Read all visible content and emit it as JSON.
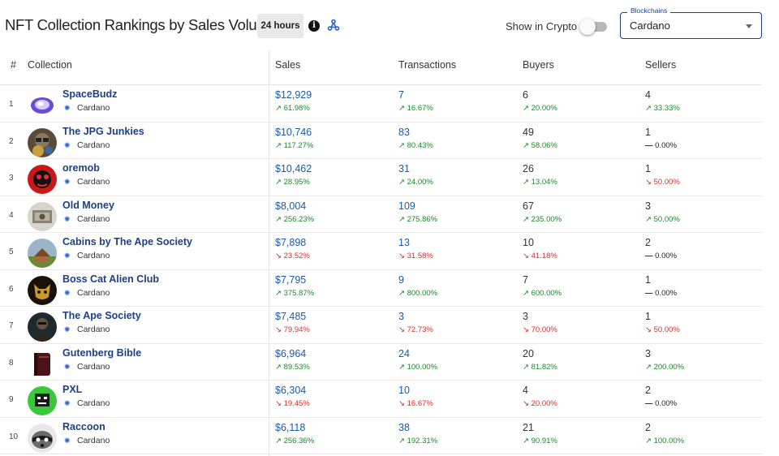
{
  "header": {
    "title": "NFT Collection Rankings by Sales Volume",
    "period": "24 hours",
    "info_icon": "info-icon",
    "webhook_icon": "webhook-icon",
    "show_crypto_label": "Show in Crypto",
    "show_crypto_enabled": false,
    "blockchain_label": "Blockchains",
    "blockchain_value": "Cardano"
  },
  "columns": {
    "rank": "#",
    "collection": "Collection",
    "sales": "Sales",
    "transactions": "Transactions",
    "buyers": "Buyers",
    "sellers": "Sellers"
  },
  "colors": {
    "link": "#1c5aa6",
    "positive": "#1a8a2a",
    "negative": "#d32f2f",
    "accent": "#1c3f87"
  },
  "rows": [
    {
      "rank": "1",
      "name": "SpaceBudz",
      "chain": "Cardano",
      "sales": "$12,929",
      "sales_change": "61.98%",
      "sales_dir": "up",
      "tx": "7",
      "tx_change": "16.67%",
      "tx_dir": "up",
      "buyers": "6",
      "buyers_change": "20.00%",
      "buyers_dir": "up",
      "sellers": "4",
      "sellers_change": "33.33%",
      "sellers_dir": "up"
    },
    {
      "rank": "2",
      "name": "The JPG Junkies",
      "chain": "Cardano",
      "sales": "$10,746",
      "sales_change": "117.27%",
      "sales_dir": "up",
      "tx": "83",
      "tx_change": "80.43%",
      "tx_dir": "up",
      "buyers": "49",
      "buyers_change": "58.06%",
      "buyers_dir": "up",
      "sellers": "1",
      "sellers_change": "0.00%",
      "sellers_dir": "flat"
    },
    {
      "rank": "3",
      "name": "oremob",
      "chain": "Cardano",
      "sales": "$10,462",
      "sales_change": "28.95%",
      "sales_dir": "up",
      "tx": "31",
      "tx_change": "24.00%",
      "tx_dir": "up",
      "buyers": "26",
      "buyers_change": "13.04%",
      "buyers_dir": "up",
      "sellers": "1",
      "sellers_change": "50.00%",
      "sellers_dir": "down"
    },
    {
      "rank": "4",
      "name": "Old Money",
      "chain": "Cardano",
      "sales": "$8,004",
      "sales_change": "256.23%",
      "sales_dir": "up",
      "tx": "109",
      "tx_change": "275.86%",
      "tx_dir": "up",
      "buyers": "67",
      "buyers_change": "235.00%",
      "buyers_dir": "up",
      "sellers": "3",
      "sellers_change": "50.00%",
      "sellers_dir": "up"
    },
    {
      "rank": "5",
      "name": "Cabins by The Ape Society",
      "chain": "Cardano",
      "sales": "$7,898",
      "sales_change": "23.52%",
      "sales_dir": "down",
      "tx": "13",
      "tx_change": "31.58%",
      "tx_dir": "down",
      "buyers": "10",
      "buyers_change": "41.18%",
      "buyers_dir": "down",
      "sellers": "2",
      "sellers_change": "0.00%",
      "sellers_dir": "flat"
    },
    {
      "rank": "6",
      "name": "Boss Cat Alien Club",
      "chain": "Cardano",
      "sales": "$7,795",
      "sales_change": "375.87%",
      "sales_dir": "up",
      "tx": "9",
      "tx_change": "800.00%",
      "tx_dir": "up",
      "buyers": "7",
      "buyers_change": "600.00%",
      "buyers_dir": "up",
      "sellers": "1",
      "sellers_change": "0.00%",
      "sellers_dir": "flat"
    },
    {
      "rank": "7",
      "name": "The Ape Society",
      "chain": "Cardano",
      "sales": "$7,485",
      "sales_change": "79.94%",
      "sales_dir": "down",
      "tx": "3",
      "tx_change": "72.73%",
      "tx_dir": "down",
      "buyers": "3",
      "buyers_change": "70.00%",
      "buyers_dir": "down",
      "sellers": "1",
      "sellers_change": "50.00%",
      "sellers_dir": "down"
    },
    {
      "rank": "8",
      "name": "Gutenberg Bible",
      "chain": "Cardano",
      "sales": "$6,964",
      "sales_change": "89.53%",
      "sales_dir": "up",
      "tx": "24",
      "tx_change": "100.00%",
      "tx_dir": "up",
      "buyers": "20",
      "buyers_change": "81.82%",
      "buyers_dir": "up",
      "sellers": "3",
      "sellers_change": "200.00%",
      "sellers_dir": "up"
    },
    {
      "rank": "9",
      "name": "PXL",
      "chain": "Cardano",
      "sales": "$6,304",
      "sales_change": "19.45%",
      "sales_dir": "down",
      "tx": "10",
      "tx_change": "16.67%",
      "tx_dir": "down",
      "buyers": "4",
      "buyers_change": "20.00%",
      "buyers_dir": "down",
      "sellers": "2",
      "sellers_change": "0.00%",
      "sellers_dir": "flat"
    },
    {
      "rank": "10",
      "name": "Raccoon",
      "chain": "Cardano",
      "sales": "$6,118",
      "sales_change": "256.36%",
      "sales_dir": "up",
      "tx": "38",
      "tx_change": "192.31%",
      "tx_dir": "up",
      "buyers": "21",
      "buyers_change": "90.91%",
      "buyers_dir": "up",
      "sellers": "2",
      "sellers_change": "100.00%",
      "sellers_dir": "up"
    }
  ]
}
